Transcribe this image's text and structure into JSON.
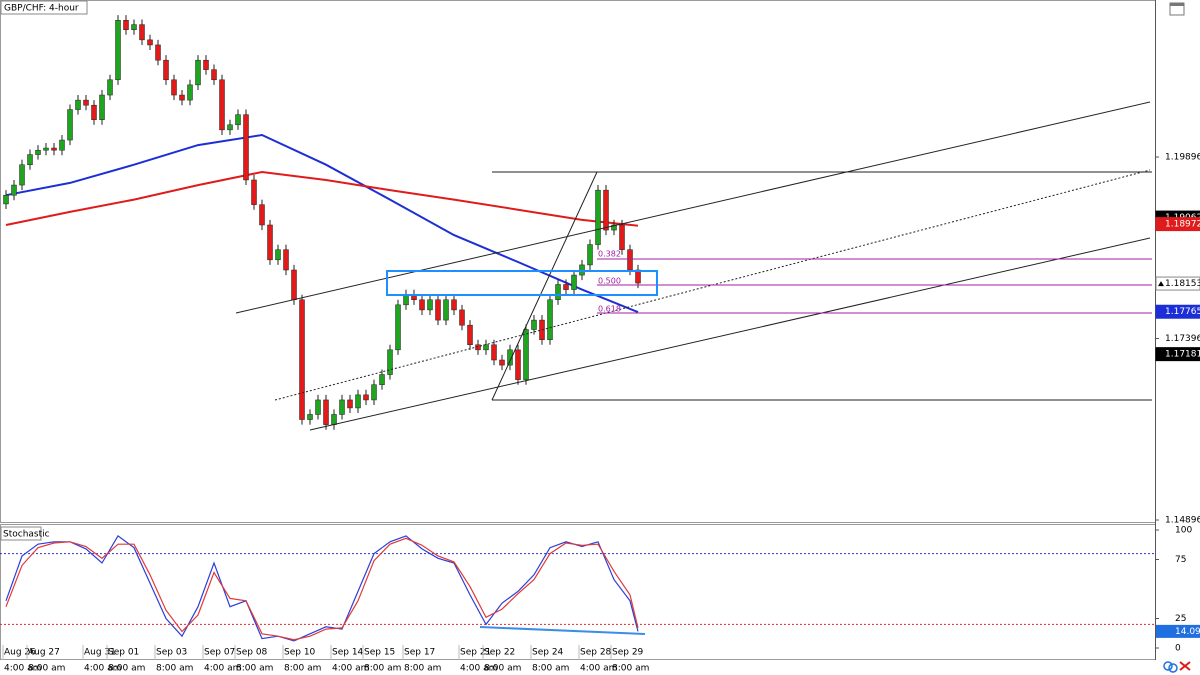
{
  "chart_data": {
    "type": "candlestick",
    "title": "GBP/CHF: 4-hour",
    "categories": [
      "Aug 26",
      null,
      null,
      "Aug 27",
      null,
      null,
      null,
      null,
      null,
      null,
      "Aug 31",
      null,
      null,
      "Sep 01",
      null,
      null,
      null,
      null,
      null,
      "Sep 03",
      null,
      null,
      null,
      null,
      null,
      "Sep 07",
      null,
      null,
      null,
      "Sep 08",
      null,
      null,
      null,
      null,
      null,
      "Sep 10",
      null,
      null,
      null,
      null,
      null,
      "Sep 14",
      null,
      null,
      null,
      "Sep 15",
      null,
      null,
      null,
      null,
      "Sep 17",
      null,
      null,
      null,
      null,
      null,
      null,
      "Sep 21",
      null,
      null,
      "Sep 22",
      null,
      null,
      null,
      null,
      null,
      "Sep 24",
      null,
      null,
      null,
      null,
      null,
      "Sep 28",
      null,
      null,
      null,
      "Sep 29",
      null,
      null,
      null
    ],
    "category_times": [
      "4:00 am",
      null,
      null,
      "8:00 am",
      null,
      null,
      null,
      null,
      null,
      null,
      "4:00 am",
      null,
      null,
      "8:00 am",
      null,
      null,
      null,
      null,
      null,
      "8:00 am",
      null,
      null,
      null,
      null,
      null,
      "4:00 am",
      null,
      null,
      null,
      "8:00 am",
      null,
      null,
      null,
      null,
      null,
      "8:00 am",
      null,
      null,
      null,
      null,
      null,
      "4:00 am",
      null,
      null,
      null,
      "8:00 am",
      null,
      null,
      null,
      null,
      "8:00 am",
      null,
      null,
      null,
      null,
      null,
      null,
      "4:00 am",
      null,
      null,
      "8:00 am",
      null,
      null,
      null,
      null,
      null,
      "8:00 am",
      null,
      null,
      null,
      null,
      null,
      "4:00 am",
      null,
      null,
      null,
      "8:00 am",
      null,
      null,
      null
    ],
    "open": [
      1.1925,
      1.1937,
      1.1951,
      1.1979,
      1.1993,
      1.1999,
      1.2002,
      1.1999,
      1.2013,
      1.2055,
      1.2068,
      1.2061,
      1.2041,
      1.2075,
      1.2096,
      1.2178,
      1.2165,
      1.2172,
      1.2151,
      1.2144,
      1.2123,
      1.2096,
      1.2075,
      1.2068,
      1.2089,
      1.2123,
      1.211,
      1.2096,
      1.2027,
      1.2034,
      1.2048,
      1.1958,
      1.1924,
      1.1896,
      1.1848,
      1.1862,
      1.1834,
      1.1793,
      1.1628,
      1.1635,
      1.1655,
      1.1621,
      1.1635,
      1.1655,
      1.1644,
      1.1662,
      1.1655,
      1.1676,
      1.169,
      1.1724,
      1.1786,
      1.18,
      1.1793,
      1.1779,
      1.1793,
      1.1765,
      1.1793,
      1.1779,
      1.1758,
      1.1731,
      1.1724,
      1.1731,
      1.171,
      1.1703,
      1.1724,
      1.1683,
      1.1752,
      1.1765,
      1.1738,
      1.1793,
      1.1814,
      1.1807,
      1.1827,
      1.1841,
      1.1869,
      1.1944,
      1.1889,
      1.1896,
      1.1862,
      1.1834
    ],
    "high": [
      1.1944,
      1.1958,
      1.1986,
      1.2,
      1.2006,
      1.2009,
      1.2009,
      1.202,
      1.2062,
      1.2075,
      1.2075,
      1.2068,
      1.2082,
      1.2103,
      1.2185,
      1.2185,
      1.2179,
      1.2179,
      1.2158,
      1.2151,
      1.213,
      1.2103,
      1.2082,
      1.2096,
      1.213,
      1.213,
      1.2117,
      1.2103,
      1.2041,
      1.2055,
      1.2055,
      1.1965,
      1.1931,
      1.1903,
      1.1869,
      1.1869,
      1.1841,
      1.18,
      1.1642,
      1.1662,
      1.1662,
      1.1642,
      1.1662,
      1.1662,
      1.1669,
      1.1669,
      1.1683,
      1.1697,
      1.1731,
      1.1793,
      1.1807,
      1.1807,
      1.18,
      1.18,
      1.18,
      1.18,
      1.18,
      1.1786,
      1.1765,
      1.1738,
      1.1738,
      1.1738,
      1.1717,
      1.1731,
      1.1731,
      1.1759,
      1.1772,
      1.1772,
      1.18,
      1.1821,
      1.1821,
      1.1834,
      1.1848,
      1.1876,
      1.1951,
      1.1951,
      1.1903,
      1.1903,
      1.1869,
      1.1841
    ],
    "low": [
      1.1918,
      1.193,
      1.1944,
      1.1972,
      1.1986,
      1.1992,
      1.1992,
      1.1992,
      1.2006,
      1.2048,
      1.2054,
      1.2034,
      1.2034,
      1.2068,
      1.2089,
      1.2158,
      1.2158,
      1.2144,
      1.2137,
      1.2116,
      1.2089,
      1.2068,
      1.2061,
      1.2061,
      1.2082,
      1.2103,
      1.2089,
      1.202,
      1.202,
      1.2027,
      1.1951,
      1.1917,
      1.1889,
      1.1841,
      1.1841,
      1.1827,
      1.1786,
      1.1621,
      1.1621,
      1.1628,
      1.1614,
      1.1614,
      1.1628,
      1.1637,
      1.1637,
      1.1648,
      1.1648,
      1.1669,
      1.1683,
      1.1717,
      1.1779,
      1.1786,
      1.1772,
      1.1772,
      1.1758,
      1.1758,
      1.1772,
      1.1751,
      1.1724,
      1.1717,
      1.1717,
      1.1703,
      1.1696,
      1.1696,
      1.1676,
      1.1676,
      1.1745,
      1.1731,
      1.1731,
      1.1786,
      1.18,
      1.18,
      1.182,
      1.1834,
      1.1862,
      1.1882,
      1.1882,
      1.1855,
      1.1827,
      1.1809
    ],
    "close": [
      1.1937,
      1.1951,
      1.1979,
      1.1993,
      1.1999,
      1.2002,
      1.1999,
      1.2013,
      1.2055,
      1.2068,
      1.2061,
      1.2041,
      1.2075,
      1.2096,
      1.2178,
      1.2165,
      1.2172,
      1.2151,
      1.2144,
      1.2123,
      1.2096,
      1.2075,
      1.2068,
      1.2089,
      1.2123,
      1.211,
      1.2096,
      1.2027,
      1.2034,
      1.2048,
      1.1958,
      1.1924,
      1.1896,
      1.1848,
      1.1862,
      1.1834,
      1.1793,
      1.1628,
      1.1635,
      1.1655,
      1.1621,
      1.1635,
      1.1655,
      1.1644,
      1.1662,
      1.1655,
      1.1676,
      1.169,
      1.1724,
      1.1786,
      1.18,
      1.1793,
      1.1779,
      1.1793,
      1.1765,
      1.1793,
      1.1779,
      1.1758,
      1.1731,
      1.1724,
      1.1731,
      1.171,
      1.1703,
      1.1724,
      1.1683,
      1.1752,
      1.1765,
      1.1738,
      1.1793,
      1.1814,
      1.1807,
      1.1827,
      1.1841,
      1.1869,
      1.1944,
      1.1889,
      1.1896,
      1.1862,
      1.1834,
      1.1816
    ],
    "up_color": "#1fa51f",
    "down_color": "#e31a1a",
    "ylim": [
      1.14855,
      1.22059
    ],
    "yticks": [
      1.19896,
      1.17396,
      1.14896
    ],
    "overlays": [
      {
        "color": "#1c2fd6",
        "x": [
          0,
          8,
          16,
          24,
          32,
          40,
          48,
          56,
          64,
          72,
          79
        ],
        "values": [
          1.1937,
          1.1954,
          1.1979,
          1.2006,
          1.202,
          1.1979,
          1.1931,
          1.1882,
          1.1845,
          1.1807,
          1.1776
        ]
      },
      {
        "color": "#e01b1b",
        "x": [
          0,
          8,
          16,
          24,
          32,
          40,
          48,
          56,
          64,
          72,
          79
        ],
        "values": [
          1.1896,
          1.1914,
          1.1931,
          1.1951,
          1.1969,
          1.1958,
          1.1944,
          1.1931,
          1.1917,
          1.1903,
          1.1895
        ]
      }
    ],
    "price_labels": [
      {
        "value": 1.19062,
        "color": "#000000",
        "text_color": "#ffffff"
      },
      {
        "value": 1.18972,
        "color": "#e01b1b",
        "text_color": "#ffffff"
      },
      {
        "value": 1.18153,
        "color": "#ffffff",
        "text_color": "#000000"
      },
      {
        "value": 1.17765,
        "color": "#1c2fd6",
        "text_color": "#ffffff"
      },
      {
        "value": 1.17181,
        "color": "#000000",
        "text_color": "#ffffff"
      }
    ],
    "fib_labels": [
      "0.382",
      "0.500",
      "0.618"
    ],
    "indicator": {
      "type": "line",
      "title": "Stochastic",
      "ylim": [
        0,
        100
      ],
      "yticks": [
        100,
        75,
        25,
        0
      ],
      "levels": [
        {
          "value": 80,
          "color": "#3030c8"
        },
        {
          "value": 20,
          "color": "#e02a2a"
        }
      ],
      "x": [
        0,
        2,
        4,
        6,
        8,
        10,
        12,
        14,
        16,
        18,
        20,
        22,
        24,
        26,
        28,
        30,
        32,
        34,
        36,
        38,
        40,
        42,
        44,
        46,
        48,
        50,
        52,
        54,
        56,
        58,
        60,
        62,
        64,
        66,
        68,
        70,
        72,
        74,
        76,
        78,
        79
      ],
      "series": [
        {
          "color": "#2d3fd8",
          "values": [
            40,
            78,
            88,
            90,
            90,
            84,
            72,
            95,
            85,
            55,
            25,
            10,
            35,
            72,
            35,
            40,
            8,
            10,
            6,
            12,
            18,
            16,
            48,
            80,
            90,
            95,
            84,
            76,
            72,
            45,
            20,
            38,
            48,
            62,
            85,
            90,
            86,
            90,
            58,
            40,
            14.09
          ]
        },
        {
          "color": "#e03a3a",
          "values": [
            35,
            70,
            85,
            89,
            90,
            86,
            76,
            88,
            88,
            62,
            32,
            14,
            28,
            64,
            42,
            40,
            12,
            10,
            7,
            10,
            16,
            17,
            40,
            74,
            88,
            93,
            87,
            78,
            73,
            52,
            26,
            33,
            46,
            58,
            80,
            89,
            87,
            88,
            65,
            45,
            17
          ]
        }
      ],
      "value_labels": [
        {
          "value": 14.09,
          "color": "#1f6fe0",
          "text_color": "#ffffff"
        }
      ]
    }
  }
}
